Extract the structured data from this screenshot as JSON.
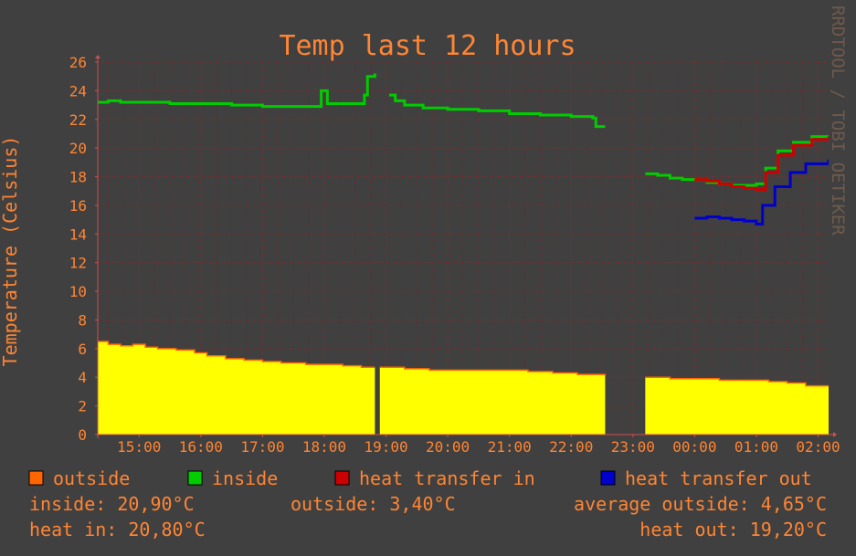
{
  "chart_data": {
    "type": "line",
    "title": "Temp last 12 hours",
    "ylabel": "Temperature (Celsius)",
    "watermark": "RRDTOOL / TOBI OETIKER",
    "ylim": [
      0,
      26
    ],
    "y_ticks": [
      "0",
      "2",
      "4",
      "6",
      "8",
      "10",
      "12",
      "14",
      "16",
      "18",
      "20",
      "22",
      "24",
      "26"
    ],
    "x_range_hours": [
      14.33,
      26.17
    ],
    "x_ticks": [
      {
        "t": 15,
        "label": "15:00"
      },
      {
        "t": 16,
        "label": "16:00"
      },
      {
        "t": 17,
        "label": "17:00"
      },
      {
        "t": 18,
        "label": "18:00"
      },
      {
        "t": 19,
        "label": "19:00"
      },
      {
        "t": 20,
        "label": "20:00"
      },
      {
        "t": 21,
        "label": "21:00"
      },
      {
        "t": 22,
        "label": "22:00"
      },
      {
        "t": 23,
        "label": "23:00"
      },
      {
        "t": 24,
        "label": "00:00"
      },
      {
        "t": 25,
        "label": "01:00"
      },
      {
        "t": 26,
        "label": "02:00"
      }
    ],
    "series": [
      {
        "name": "outside",
        "color": "#ff6600",
        "kind": "area",
        "fill": "#ffff00",
        "segments": [
          [
            [
              14.33,
              6.5
            ],
            [
              14.5,
              6.3
            ],
            [
              14.7,
              6.2
            ],
            [
              14.9,
              6.3
            ],
            [
              15.1,
              6.1
            ],
            [
              15.3,
              6.0
            ],
            [
              15.6,
              5.9
            ],
            [
              15.9,
              5.7
            ],
            [
              16.1,
              5.5
            ],
            [
              16.4,
              5.3
            ],
            [
              16.7,
              5.2
            ],
            [
              17.0,
              5.1
            ],
            [
              17.3,
              5.0
            ],
            [
              17.7,
              4.9
            ],
            [
              18.0,
              4.9
            ],
            [
              18.3,
              4.8
            ],
            [
              18.6,
              4.7
            ],
            [
              18.82,
              4.7
            ]
          ],
          [
            [
              18.9,
              4.7
            ],
            [
              19.3,
              4.6
            ],
            [
              19.7,
              4.5
            ],
            [
              20.1,
              4.5
            ],
            [
              20.5,
              4.5
            ],
            [
              20.9,
              4.5
            ],
            [
              21.3,
              4.4
            ],
            [
              21.7,
              4.3
            ],
            [
              22.1,
              4.2
            ],
            [
              22.55,
              4.1
            ]
          ],
          [
            [
              23.2,
              4.0
            ],
            [
              23.6,
              3.9
            ],
            [
              24.0,
              3.9
            ],
            [
              24.4,
              3.8
            ],
            [
              24.8,
              3.8
            ],
            [
              25.2,
              3.7
            ],
            [
              25.5,
              3.6
            ],
            [
              25.8,
              3.4
            ],
            [
              26.17,
              3.4
            ]
          ]
        ]
      },
      {
        "name": "inside",
        "color": "#00cc00",
        "kind": "line",
        "segments": [
          [
            [
              14.33,
              23.2
            ],
            [
              14.5,
              23.3
            ],
            [
              14.7,
              23.2
            ],
            [
              15.0,
              23.2
            ],
            [
              15.5,
              23.1
            ],
            [
              16.0,
              23.1
            ],
            [
              16.5,
              23.0
            ],
            [
              17.0,
              22.9
            ],
            [
              17.5,
              22.9
            ],
            [
              17.9,
              22.9
            ],
            [
              17.95,
              24.0
            ],
            [
              18.05,
              23.1
            ],
            [
              18.3,
              23.1
            ],
            [
              18.6,
              23.1
            ],
            [
              18.65,
              23.7
            ],
            [
              18.7,
              25.0
            ],
            [
              18.82,
              25.2
            ]
          ],
          [
            [
              19.05,
              23.7
            ],
            [
              19.15,
              23.3
            ],
            [
              19.3,
              23.0
            ],
            [
              19.6,
              22.8
            ],
            [
              20.0,
              22.7
            ],
            [
              20.5,
              22.6
            ],
            [
              21.0,
              22.4
            ],
            [
              21.5,
              22.3
            ],
            [
              22.0,
              22.2
            ],
            [
              22.35,
              22.1
            ],
            [
              22.4,
              21.5
            ],
            [
              22.55,
              21.5
            ]
          ],
          [
            [
              23.2,
              18.2
            ],
            [
              23.4,
              18.1
            ],
            [
              23.6,
              17.9
            ],
            [
              23.8,
              17.8
            ],
            [
              24.0,
              17.8
            ],
            [
              24.2,
              17.6
            ],
            [
              24.4,
              17.5
            ],
            [
              24.6,
              17.4
            ],
            [
              24.8,
              17.4
            ],
            [
              25.0,
              17.5
            ],
            [
              25.15,
              18.6
            ],
            [
              25.35,
              19.8
            ],
            [
              25.6,
              20.4
            ],
            [
              25.9,
              20.8
            ],
            [
              26.17,
              20.9
            ]
          ]
        ]
      },
      {
        "name": "heat transfer in",
        "color": "#cc0000",
        "kind": "line",
        "segments": [
          [
            [
              24.0,
              17.8
            ],
            [
              24.2,
              17.7
            ],
            [
              24.4,
              17.5
            ],
            [
              24.6,
              17.3
            ],
            [
              24.8,
              17.2
            ],
            [
              25.0,
              17.1
            ],
            [
              25.15,
              18.3
            ],
            [
              25.35,
              19.5
            ],
            [
              25.6,
              20.2
            ],
            [
              25.9,
              20.6
            ],
            [
              26.17,
              20.8
            ]
          ]
        ]
      },
      {
        "name": "heat transfer out",
        "color": "#0000cc",
        "kind": "line",
        "segments": [
          [
            [
              24.0,
              15.1
            ],
            [
              24.2,
              15.2
            ],
            [
              24.4,
              15.1
            ],
            [
              24.6,
              15.0
            ],
            [
              24.8,
              14.9
            ],
            [
              25.0,
              14.7
            ],
            [
              25.1,
              16.0
            ],
            [
              25.3,
              17.3
            ],
            [
              25.55,
              18.3
            ],
            [
              25.8,
              18.9
            ],
            [
              26.17,
              19.2
            ]
          ]
        ]
      }
    ]
  },
  "legend": [
    {
      "label": "outside",
      "color": "#ff6600"
    },
    {
      "label": "inside",
      "color": "#00cc00"
    },
    {
      "label": "heat transfer in",
      "color": "#cc0000"
    },
    {
      "label": "heat transfer out",
      "color": "#0000cc"
    }
  ],
  "stats": {
    "inside": "inside: 20,90°C",
    "outside": "outside: 3,40°C",
    "average_outside": "average outside: 4,65°C",
    "heat_in": "heat in: 20,80°C",
    "heat_out": "heat out: 19,20°C"
  }
}
